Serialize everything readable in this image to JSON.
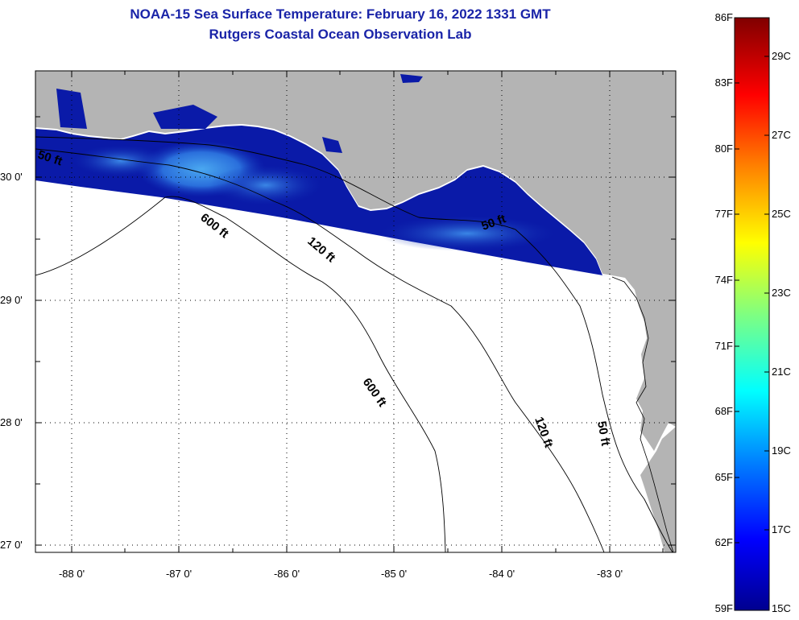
{
  "title": {
    "line1": "NOAA-15 Sea Surface Temperature:  February 16, 2022 1331 GMT",
    "line2": "Rutgers Coastal Ocean Observation Lab"
  },
  "map": {
    "lat_labels": [
      "30 0'",
      "29 0'",
      "28 0'",
      "27 0'"
    ],
    "lon_labels": [
      "-88 0'",
      "-87 0'",
      "-86 0'",
      "-85 0'",
      "-84 0'",
      "-83 0'"
    ],
    "contour_labels": [
      "50 ft",
      "600 ft",
      "120 ft",
      "50 ft",
      "600 ft",
      "120 ft",
      "50 ft"
    ],
    "colors": {
      "land": "#b4b4b4",
      "water": "#ffffff",
      "sst_low": "#000a8c",
      "sst_high": "#3c9ee8"
    }
  },
  "colorbar": {
    "f_labels": [
      "86F",
      "83F",
      "80F",
      "77F",
      "74F",
      "71F",
      "68F",
      "65F",
      "62F",
      "59F"
    ],
    "c_labels": [
      "29C",
      "27C",
      "25C",
      "23C",
      "21C",
      "19C",
      "17C",
      "15C"
    ],
    "min_f": 59,
    "max_f": 86
  }
}
